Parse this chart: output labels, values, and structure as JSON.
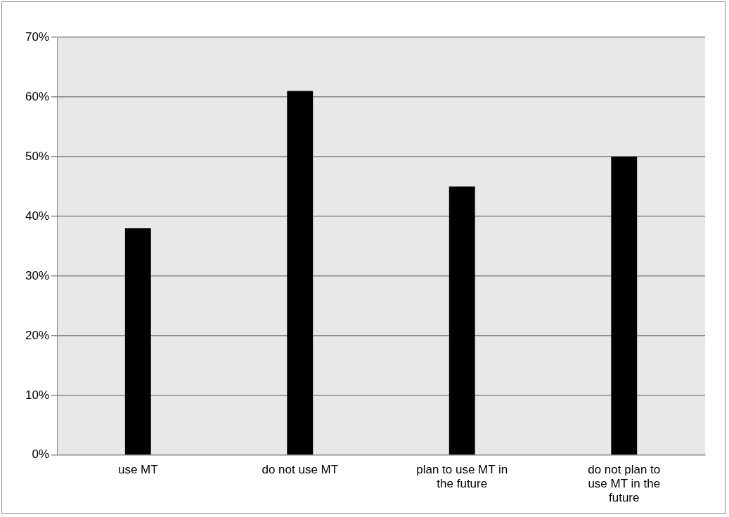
{
  "chart_data": {
    "type": "bar",
    "categories": [
      "use MT",
      "do not use MT",
      "plan to use MT in the future",
      "do not plan to use MT in the future"
    ],
    "values": [
      38,
      61,
      45,
      50
    ],
    "color": "#000000",
    "ylim": [
      0,
      70
    ],
    "yticks": [
      {
        "value": 0,
        "label": "0%"
      },
      {
        "value": 10,
        "label": "10%"
      },
      {
        "value": 20,
        "label": "20%"
      },
      {
        "value": 30,
        "label": "30%"
      },
      {
        "value": 40,
        "label": "40%"
      },
      {
        "value": 50,
        "label": "50%"
      },
      {
        "value": 60,
        "label": "60%"
      },
      {
        "value": 70,
        "label": "70%"
      }
    ],
    "grid": "y",
    "legend": false
  }
}
